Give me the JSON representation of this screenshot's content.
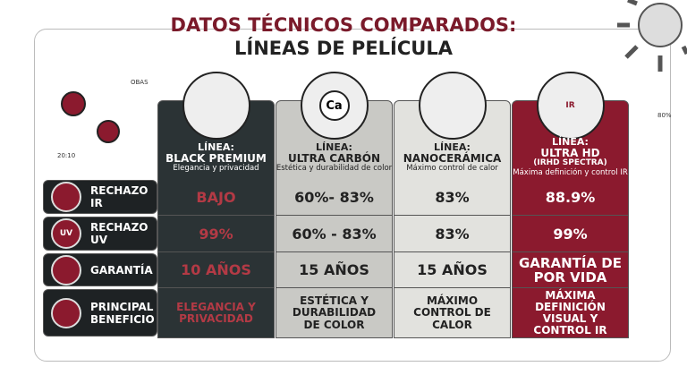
{
  "header": {
    "title": "DATOS TÉCNICOS COMPARADOS:",
    "subtitle": "LÍNEAS DE PELÍCULA"
  },
  "decor_texts": [
    "OBAS",
    "20:10",
    "80%"
  ],
  "icon_labels": {
    "carbon": "Ca",
    "uv": "UV",
    "ir": "IR"
  },
  "table": {
    "columns": [
      {
        "prefix": "LÍNEA:",
        "name": "BLACK PREMIUM",
        "description": "Elegancia y privacidad"
      },
      {
        "prefix": "LÍNEA:",
        "name": "ULTRA CARBÓN",
        "description": "Estética y durabilidad de color"
      },
      {
        "prefix": "LÍNEA:",
        "name": "NANOCERÁMICA",
        "description": "Máximo control de calor"
      },
      {
        "prefix": "LÍNEA:",
        "name": "ULTRA HD",
        "subname": "(IRHD SPECTRA)",
        "description": "Máxima definición y control IR"
      }
    ],
    "rows": [
      {
        "label": "RECHAZO IR",
        "cells": [
          "BAJO",
          "60%- 83%",
          "83%",
          "88.9%"
        ]
      },
      {
        "label": "RECHAZO UV",
        "cells": [
          "99%",
          "60% - 83%",
          "83%",
          "99%"
        ]
      },
      {
        "label": "GARANTÍA",
        "cells": [
          "10 AÑOS",
          "15 AÑOS",
          "15 AÑOS",
          "GARANTÍA DE POR VIDA"
        ]
      },
      {
        "label": "PRINCIPAL BENEFICIO",
        "cells": [
          "ELEGANCIA Y PRIVACIDAD",
          "ESTÉTICA Y DURABILIDAD DE COLOR",
          "MÁXIMO CONTROL DE CALOR",
          "MÁXIMA DEFINICIÓN VISUAL Y CONTROL IR"
        ]
      }
    ]
  }
}
